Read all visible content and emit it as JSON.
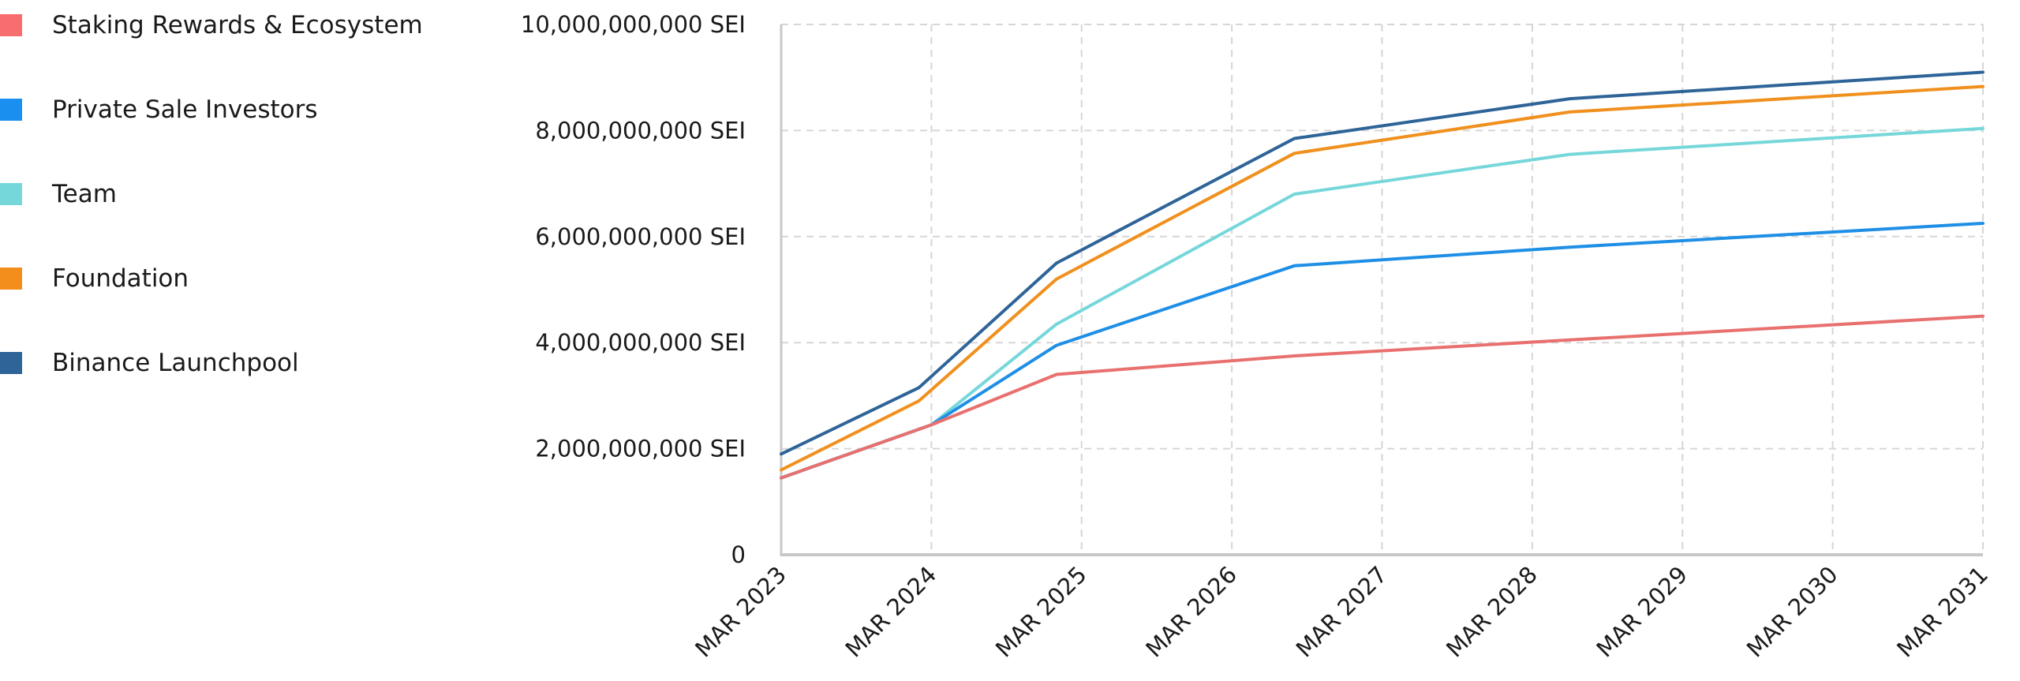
{
  "chart_data": {
    "type": "line",
    "title": "",
    "xlabel": "",
    "ylabel": "",
    "ylim": [
      0,
      10000000000
    ],
    "grid": true,
    "legend_position": "left",
    "y_ticks": [
      {
        "value": 0,
        "label": "0"
      },
      {
        "value": 2000000000,
        "label": "2,000,000,000 SEI"
      },
      {
        "value": 4000000000,
        "label": "4,000,000,000 SEI"
      },
      {
        "value": 6000000000,
        "label": "6,000,000,000 SEI"
      },
      {
        "value": 8000000000,
        "label": "8,000,000,000 SEI"
      },
      {
        "value": 10000000000,
        "label": "10,000,000,000 SEI"
      }
    ],
    "x_ticks": [
      "2023-03",
      "2024-03",
      "2025-03",
      "2026-03",
      "2027-03",
      "2028-03",
      "2029-03",
      "2030-03",
      "2031-03"
    ],
    "x_tick_labels": [
      "MAR 2023",
      "MAR 2024",
      "MAR 2025",
      "MAR 2026",
      "MAR 2027",
      "MAR 2028",
      "MAR 2029",
      "MAR 2030",
      "MAR 2031"
    ],
    "xlim": [
      "2023-03",
      "2031-03"
    ],
    "series": [
      {
        "name": "Binance Launchpool",
        "color": "#2e6498",
        "points": [
          [
            "2023-03",
            1900000000
          ],
          [
            "2024-02",
            3150000000
          ],
          [
            "2025-01",
            5500000000
          ],
          [
            "2026-08",
            7850000000
          ],
          [
            "2028-06",
            8600000000
          ],
          [
            "2031-03",
            9100000000
          ]
        ]
      },
      {
        "name": "Foundation",
        "color": "#f0901e",
        "points": [
          [
            "2023-03",
            1600000000
          ],
          [
            "2024-02",
            2900000000
          ],
          [
            "2025-01",
            5200000000
          ],
          [
            "2026-08",
            7570000000
          ],
          [
            "2028-06",
            8350000000
          ],
          [
            "2031-03",
            8830000000
          ]
        ]
      },
      {
        "name": "Team",
        "color": "#76d7da",
        "points": [
          [
            "2023-03",
            1450000000
          ],
          [
            "2024-03",
            2450000000
          ],
          [
            "2025-01",
            4350000000
          ],
          [
            "2026-08",
            6800000000
          ],
          [
            "2028-06",
            7550000000
          ],
          [
            "2031-03",
            8040000000
          ]
        ]
      },
      {
        "name": "Private Sale Investors",
        "color": "#1f8fe5",
        "points": [
          [
            "2023-03",
            1450000000
          ],
          [
            "2024-03",
            2450000000
          ],
          [
            "2025-01",
            3950000000
          ],
          [
            "2026-08",
            5450000000
          ],
          [
            "2028-06",
            5800000000
          ],
          [
            "2031-03",
            6250000000
          ]
        ]
      },
      {
        "name": "Staking Rewards & Ecosystem",
        "color": "#e8706e",
        "points": [
          [
            "2023-03",
            1450000000
          ],
          [
            "2024-03",
            2450000000
          ],
          [
            "2025-01",
            3400000000
          ],
          [
            "2026-08",
            3750000000
          ],
          [
            "2028-06",
            4050000000
          ],
          [
            "2031-03",
            4500000000
          ]
        ]
      }
    ]
  },
  "legend": {
    "items": [
      {
        "label": "Staking Rewards & Ecosystem",
        "color": "#f86d6d"
      },
      {
        "label": "Private Sale Investors",
        "color": "#1a8ff0"
      },
      {
        "label": "Team",
        "color": "#76d7da"
      },
      {
        "label": "Foundation",
        "color": "#f38e1c"
      },
      {
        "label": "Binance Launchpool",
        "color": "#2e6498"
      }
    ]
  }
}
